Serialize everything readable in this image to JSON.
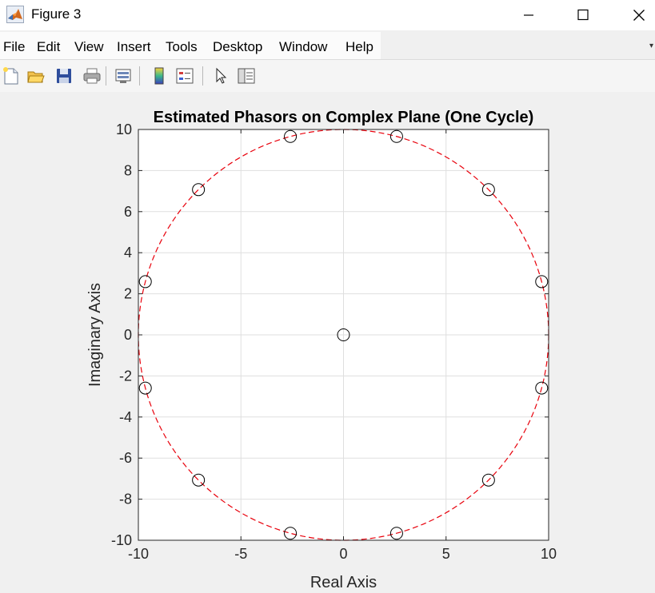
{
  "window": {
    "title": "Figure 3"
  },
  "menu": {
    "items": [
      "File",
      "Edit",
      "View",
      "Insert",
      "Tools",
      "Desktop",
      "Window",
      "Help"
    ]
  },
  "toolbar": {
    "buttons": [
      "new-figure-icon",
      "open-file-icon",
      "save-icon",
      "print-icon",
      "link-plot-icon",
      "insert-colorbar-icon",
      "insert-legend-icon",
      "edit-plot-arrow-icon",
      "property-inspector-icon"
    ]
  },
  "colors": {
    "circle": "#e8000b",
    "markers": "#000000",
    "grid": "#dfdfdf",
    "axes_bg": "#ffffff",
    "figure_bg": "#f0f0f0"
  },
  "chart_data": {
    "type": "scatter",
    "title": "Estimated Phasors on Complex Plane (One Cycle)",
    "xlabel": "Real Axis",
    "ylabel": "Imaginary Axis",
    "xlim": [
      -10,
      10
    ],
    "ylim": [
      -10,
      10
    ],
    "xticks": [
      -10,
      -5,
      0,
      5,
      10
    ],
    "yticks": [
      -10,
      -8,
      -6,
      -4,
      -2,
      0,
      2,
      4,
      6,
      8,
      10
    ],
    "xtick_labels": [
      "-10",
      "-5",
      "0",
      "5",
      "10"
    ],
    "ytick_labels": [
      "-10",
      "-8",
      "-6",
      "-4",
      "-2",
      "0",
      "2",
      "4",
      "6",
      "8",
      "10"
    ],
    "grid": true,
    "reference_circle": {
      "radius": 10,
      "style": "dashed",
      "color": "#e8000b"
    },
    "points": [
      {
        "x": 0,
        "y": 0
      },
      {
        "x": 9.66,
        "y": 2.59
      },
      {
        "x": 7.07,
        "y": 7.07
      },
      {
        "x": 2.59,
        "y": 9.66
      },
      {
        "x": -2.59,
        "y": 9.66
      },
      {
        "x": -7.07,
        "y": 7.07
      },
      {
        "x": -9.66,
        "y": 2.59
      },
      {
        "x": -9.66,
        "y": -2.59
      },
      {
        "x": -7.07,
        "y": -7.07
      },
      {
        "x": -2.59,
        "y": -9.66
      },
      {
        "x": 2.59,
        "y": -9.66
      },
      {
        "x": 7.07,
        "y": -7.07
      },
      {
        "x": 9.66,
        "y": -2.59
      }
    ],
    "marker": "circle-open"
  }
}
